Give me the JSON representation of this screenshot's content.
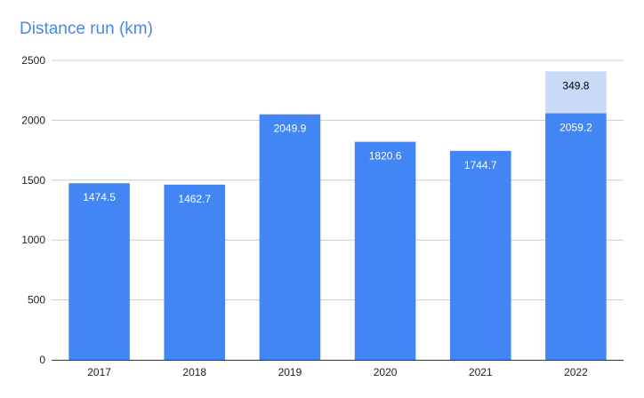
{
  "chart_data": {
    "type": "bar",
    "stacked": true,
    "title": "Distance run (km)",
    "xlabel": "",
    "ylabel": "",
    "categories": [
      "2017",
      "2018",
      "2019",
      "2020",
      "2021",
      "2022"
    ],
    "series": [
      {
        "values": [
          1474.5,
          1462.7,
          2049.9,
          1820.6,
          1744.7,
          2059.2
        ],
        "labels": [
          "1474.5",
          "1462.7",
          "2049.9",
          "1820.6",
          "1744.7",
          "2059.2"
        ],
        "color": "#4285f4",
        "label_color": "#ffffff"
      },
      {
        "values": [
          0,
          0,
          0,
          0,
          0,
          349.8
        ],
        "labels": [
          "",
          "",
          "",
          "",
          "",
          "349.8"
        ],
        "color": "#c9daf8",
        "label_color": "#000000"
      }
    ],
    "yticks": [
      0,
      500,
      1000,
      1500,
      2000,
      2500
    ],
    "ylim": [
      0,
      2500
    ],
    "grid": true,
    "legend": "none"
  }
}
